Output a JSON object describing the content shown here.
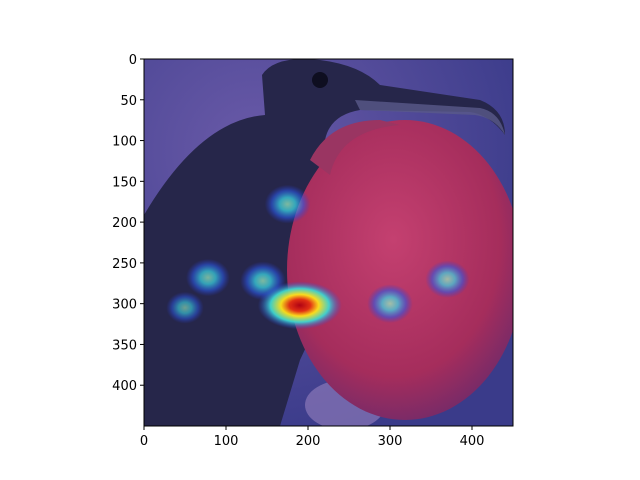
{
  "figure": {
    "xaxis": {
      "ticks": [
        0,
        100,
        200,
        300,
        400
      ],
      "range": [
        0,
        450
      ]
    },
    "yaxis": {
      "ticks": [
        0,
        50,
        100,
        150,
        200,
        250,
        300,
        350,
        400
      ],
      "range": [
        0,
        450
      ],
      "inverted": true
    }
  },
  "image": {
    "subject": "frigatebird",
    "overlay": "heatmap",
    "colors": {
      "background_blue": "#3b3f8f",
      "pouch_red": "#b8325e",
      "bird_dark": "#232242",
      "heat_red": "#c8141e",
      "heat_yellow": "#ffe41a",
      "heat_cyan": "#39d7e6"
    },
    "hotspots": [
      {
        "x": 175,
        "y": 178,
        "intensity": 0.55
      },
      {
        "x": 78,
        "y": 268,
        "intensity": 0.5
      },
      {
        "x": 145,
        "y": 272,
        "intensity": 0.55
      },
      {
        "x": 190,
        "y": 302,
        "intensity": 1.0
      },
      {
        "x": 300,
        "y": 300,
        "intensity": 0.55
      },
      {
        "x": 370,
        "y": 270,
        "intensity": 0.5
      },
      {
        "x": 50,
        "y": 305,
        "intensity": 0.3
      }
    ]
  }
}
